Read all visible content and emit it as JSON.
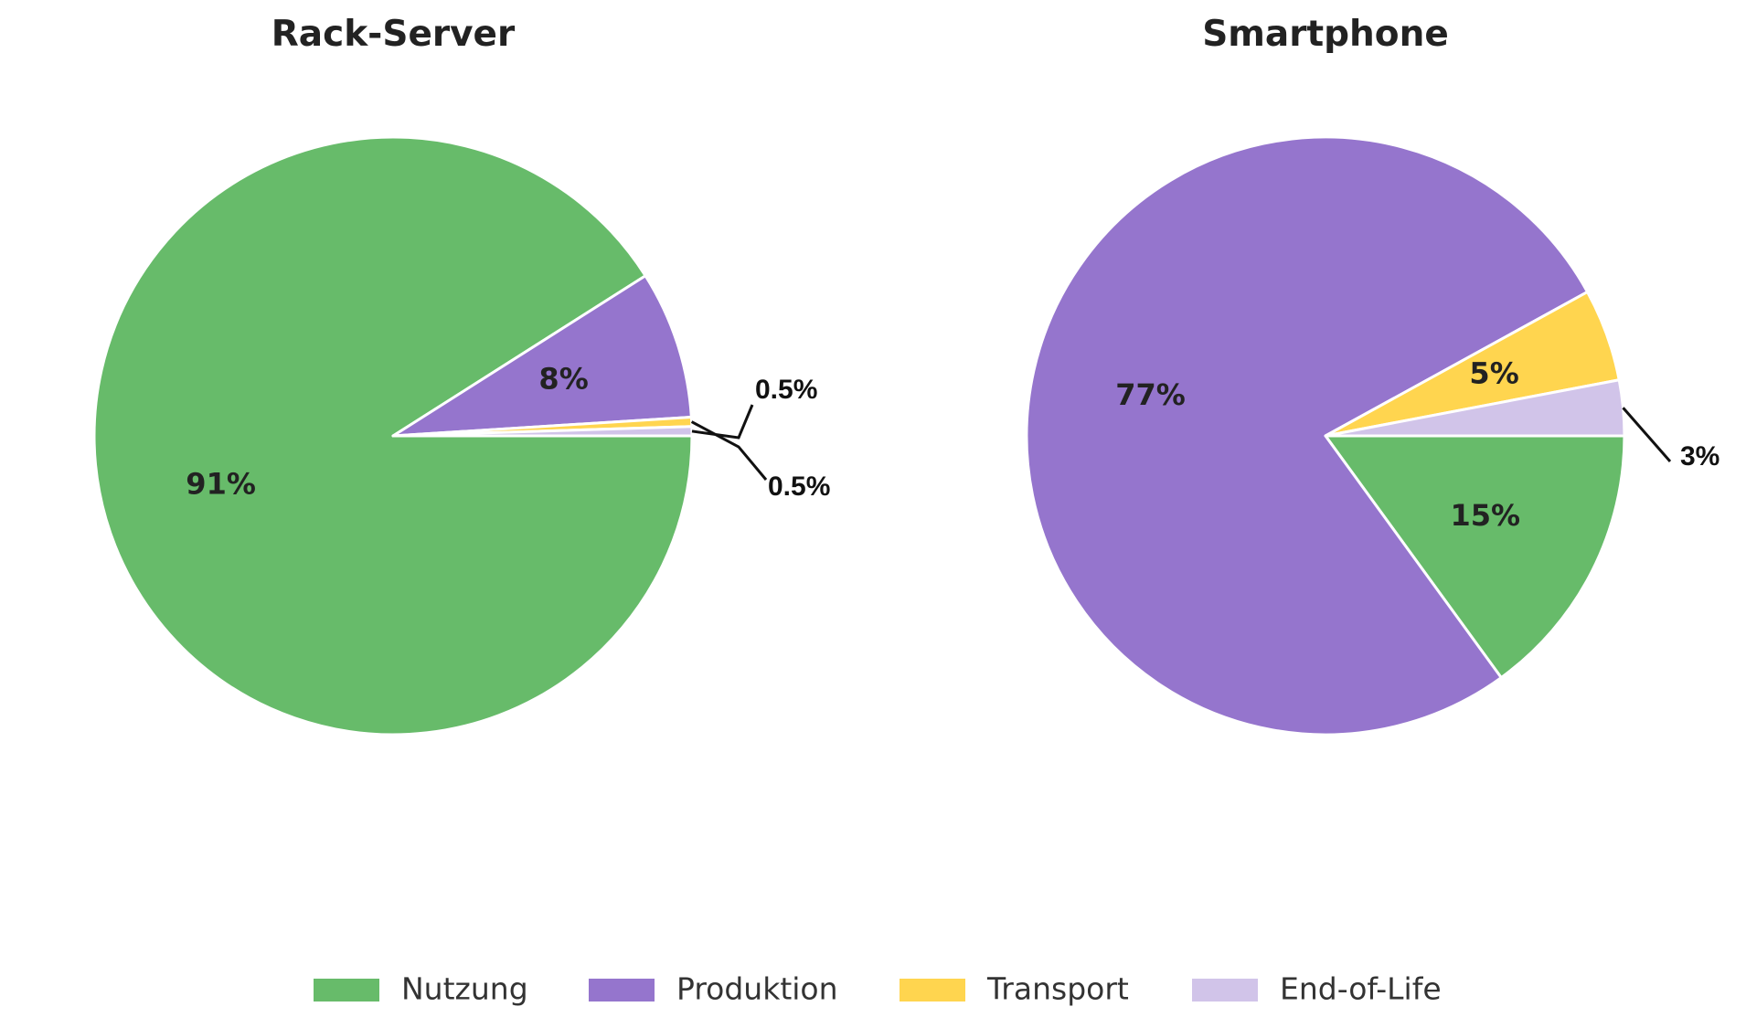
{
  "chart_data": [
    {
      "type": "pie",
      "title": "Rack-Server",
      "slices": [
        {
          "label": "Nutzung",
          "value": 91,
          "text": "91%"
        },
        {
          "label": "Produktion",
          "value": 8,
          "text": "8%"
        },
        {
          "label": "Transport",
          "value": 0.5,
          "text": "0.5%"
        },
        {
          "label": "End-of-Life",
          "value": 0.5,
          "text": "0.5%"
        }
      ]
    },
    {
      "type": "pie",
      "title": "Smartphone",
      "slices": [
        {
          "label": "Nutzung",
          "value": 15,
          "text": "15%"
        },
        {
          "label": "Produktion",
          "value": 77,
          "text": "77%"
        },
        {
          "label": "Transport",
          "value": 5,
          "text": "5%"
        },
        {
          "label": "End-of-Life",
          "value": 3,
          "text": "3%"
        }
      ]
    }
  ],
  "legend": {
    "placement": "bottom",
    "items": [
      {
        "label": "Nutzung",
        "color": "#67bb6a"
      },
      {
        "label": "Produktion",
        "color": "#9575cd"
      },
      {
        "label": "Transport",
        "color": "#ffd54f"
      },
      {
        "label": "End-of-Life",
        "color": "#d1c4e9"
      }
    ]
  }
}
